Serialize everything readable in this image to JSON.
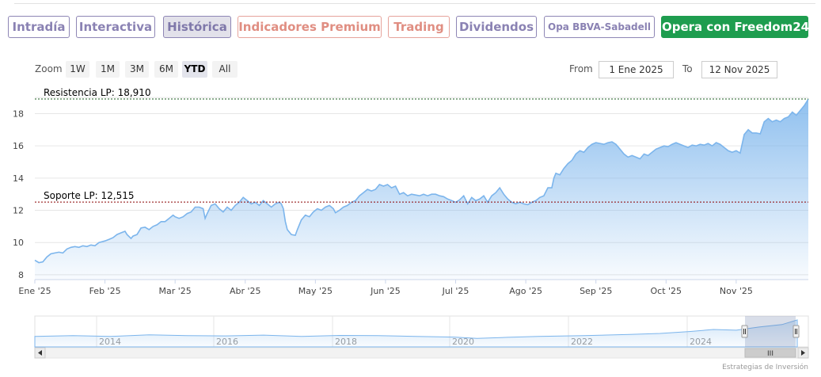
{
  "tabs": [
    {
      "label": "Intradía",
      "style": "normal"
    },
    {
      "label": "Interactiva",
      "style": "normal"
    },
    {
      "label": "Histórica",
      "style": "active"
    },
    {
      "label": "Indicadores Premium",
      "style": "premium"
    },
    {
      "label": "Trading",
      "style": "premium"
    },
    {
      "label": "Dividendos",
      "style": "normal"
    },
    {
      "label": "Opa BBVA-Sabadell",
      "style": "small"
    },
    {
      "label": "Opera con Freedom24",
      "style": "cta"
    }
  ],
  "colors": {
    "accent": "#8a82b3",
    "premium": "#e08e82",
    "cta": "#1e9d4f",
    "series": "#7cb5ec",
    "resistance": "#1b5e20",
    "support": "#8b0000"
  },
  "zoom": {
    "label": "Zoom",
    "buttons": [
      "1W",
      "1M",
      "3M",
      "6M",
      "YTD",
      "All"
    ],
    "selected": "YTD"
  },
  "range": {
    "from_label": "From",
    "from_value": "1 Ene 2025",
    "to_label": "To",
    "to_value": "12 Nov 2025"
  },
  "chart_data": {
    "type": "area",
    "title": "",
    "x_labels": [
      "Ene '25",
      "Feb '25",
      "Mar '25",
      "Abr '25",
      "May '25",
      "Jun '25",
      "Jul '25",
      "Ago '25",
      "Sep '25",
      "Oct '25",
      "Nov '25"
    ],
    "y_ticks": [
      8,
      10,
      12,
      14,
      16,
      18
    ],
    "ylim": [
      7.7,
      19.5
    ],
    "grid": true,
    "series": [
      {
        "values": [
          [
            0,
            8.9
          ],
          [
            2,
            8.75
          ],
          [
            4,
            8.8
          ],
          [
            6,
            9.1
          ],
          [
            8,
            9.3
          ],
          [
            10,
            9.35
          ],
          [
            12,
            9.4
          ],
          [
            14,
            9.35
          ],
          [
            16,
            9.6
          ],
          [
            18,
            9.7
          ],
          [
            20,
            9.75
          ],
          [
            22,
            9.7
          ],
          [
            24,
            9.8
          ],
          [
            26,
            9.75
          ],
          [
            28,
            9.85
          ],
          [
            30,
            9.8
          ],
          [
            32,
            10.0
          ],
          [
            35,
            10.1
          ],
          [
            37,
            10.2
          ],
          [
            39,
            10.3
          ],
          [
            41,
            10.5
          ],
          [
            43,
            10.6
          ],
          [
            45,
            10.7
          ],
          [
            46,
            10.5
          ],
          [
            48,
            10.25
          ],
          [
            49,
            10.4
          ],
          [
            51,
            10.5
          ],
          [
            53,
            10.9
          ],
          [
            55,
            10.95
          ],
          [
            57,
            10.8
          ],
          [
            59,
            11.0
          ],
          [
            61,
            11.1
          ],
          [
            63,
            11.3
          ],
          [
            65,
            11.3
          ],
          [
            67,
            11.5
          ],
          [
            69,
            11.7
          ],
          [
            70,
            11.6
          ],
          [
            72,
            11.5
          ],
          [
            74,
            11.6
          ],
          [
            76,
            11.8
          ],
          [
            78,
            11.9
          ],
          [
            80,
            12.2
          ],
          [
            82,
            12.2
          ],
          [
            84,
            12.1
          ],
          [
            85,
            11.5
          ],
          [
            86,
            11.8
          ],
          [
            88,
            12.3
          ],
          [
            90,
            12.4
          ],
          [
            92,
            12.1
          ],
          [
            94,
            11.9
          ],
          [
            96,
            12.2
          ],
          [
            98,
            12.0
          ],
          [
            100,
            12.3
          ],
          [
            102,
            12.5
          ],
          [
            104,
            12.8
          ],
          [
            106,
            12.6
          ],
          [
            108,
            12.4
          ],
          [
            110,
            12.5
          ],
          [
            112,
            12.3
          ],
          [
            114,
            12.6
          ],
          [
            116,
            12.4
          ],
          [
            118,
            12.2
          ],
          [
            120,
            12.4
          ],
          [
            122,
            12.5
          ],
          [
            123,
            12.4
          ],
          [
            124,
            12.1
          ],
          [
            125,
            11.3
          ],
          [
            126,
            10.8
          ],
          [
            128,
            10.5
          ],
          [
            130,
            10.45
          ],
          [
            131,
            10.8
          ],
          [
            133,
            11.4
          ],
          [
            135,
            11.7
          ],
          [
            137,
            11.6
          ],
          [
            139,
            11.9
          ],
          [
            141,
            12.1
          ],
          [
            143,
            12.0
          ],
          [
            145,
            12.2
          ],
          [
            147,
            12.3
          ],
          [
            149,
            12.1
          ],
          [
            150,
            11.85
          ],
          [
            152,
            12.0
          ],
          [
            154,
            12.2
          ],
          [
            156,
            12.3
          ],
          [
            158,
            12.5
          ],
          [
            160,
            12.6
          ],
          [
            162,
            12.9
          ],
          [
            164,
            13.1
          ],
          [
            166,
            13.3
          ],
          [
            168,
            13.2
          ],
          [
            170,
            13.3
          ],
          [
            172,
            13.6
          ],
          [
            174,
            13.5
          ],
          [
            176,
            13.6
          ],
          [
            178,
            13.4
          ],
          [
            180,
            13.5
          ],
          [
            182,
            13.0
          ],
          [
            184,
            13.1
          ],
          [
            186,
            12.9
          ],
          [
            188,
            13.0
          ],
          [
            190,
            12.95
          ],
          [
            192,
            12.9
          ],
          [
            194,
            13.0
          ],
          [
            196,
            12.9
          ],
          [
            198,
            13.0
          ],
          [
            200,
            13.0
          ],
          [
            202,
            12.9
          ],
          [
            204,
            12.85
          ],
          [
            206,
            12.7
          ],
          [
            208,
            12.6
          ],
          [
            210,
            12.5
          ],
          [
            212,
            12.65
          ],
          [
            214,
            12.9
          ],
          [
            216,
            12.4
          ],
          [
            218,
            12.8
          ],
          [
            220,
            12.6
          ],
          [
            222,
            12.7
          ],
          [
            224,
            12.9
          ],
          [
            226,
            12.5
          ],
          [
            228,
            12.9
          ],
          [
            230,
            13.1
          ],
          [
            232,
            13.4
          ],
          [
            234,
            13.0
          ],
          [
            236,
            12.7
          ],
          [
            238,
            12.5
          ],
          [
            240,
            12.4
          ],
          [
            242,
            12.5
          ],
          [
            244,
            12.4
          ],
          [
            246,
            12.35
          ],
          [
            248,
            12.5
          ],
          [
            250,
            12.6
          ],
          [
            252,
            12.8
          ],
          [
            254,
            12.9
          ],
          [
            256,
            13.4
          ],
          [
            258,
            13.4
          ],
          [
            259,
            14.0
          ],
          [
            260,
            14.3
          ],
          [
            262,
            14.2
          ],
          [
            264,
            14.6
          ],
          [
            266,
            14.9
          ],
          [
            268,
            15.1
          ],
          [
            270,
            15.5
          ],
          [
            272,
            15.7
          ],
          [
            274,
            15.6
          ],
          [
            276,
            15.9
          ],
          [
            278,
            16.1
          ],
          [
            280,
            16.2
          ],
          [
            282,
            16.15
          ],
          [
            284,
            16.1
          ],
          [
            286,
            16.2
          ],
          [
            288,
            16.25
          ],
          [
            290,
            16.1
          ],
          [
            292,
            15.8
          ],
          [
            294,
            15.5
          ],
          [
            296,
            15.3
          ],
          [
            298,
            15.4
          ],
          [
            300,
            15.3
          ],
          [
            302,
            15.2
          ],
          [
            304,
            15.5
          ],
          [
            306,
            15.4
          ],
          [
            308,
            15.6
          ],
          [
            310,
            15.8
          ],
          [
            312,
            15.9
          ],
          [
            314,
            16.0
          ],
          [
            316,
            15.95
          ],
          [
            318,
            16.1
          ],
          [
            320,
            16.2
          ],
          [
            322,
            16.1
          ],
          [
            324,
            16.0
          ],
          [
            326,
            15.9
          ],
          [
            328,
            16.05
          ],
          [
            330,
            16.0
          ],
          [
            332,
            16.1
          ],
          [
            334,
            16.05
          ],
          [
            336,
            16.15
          ],
          [
            338,
            16.0
          ],
          [
            340,
            16.2
          ],
          [
            342,
            16.1
          ],
          [
            344,
            15.9
          ],
          [
            346,
            15.7
          ],
          [
            348,
            15.6
          ],
          [
            350,
            15.7
          ],
          [
            352,
            15.55
          ],
          [
            354,
            16.7
          ],
          [
            356,
            17.0
          ],
          [
            358,
            16.8
          ],
          [
            360,
            16.8
          ],
          [
            362,
            16.75
          ],
          [
            364,
            17.5
          ],
          [
            366,
            17.7
          ],
          [
            368,
            17.5
          ],
          [
            370,
            17.6
          ],
          [
            372,
            17.5
          ],
          [
            374,
            17.7
          ],
          [
            376,
            17.8
          ],
          [
            378,
            18.1
          ],
          [
            380,
            17.9
          ],
          [
            382,
            18.2
          ],
          [
            384,
            18.5
          ],
          [
            386,
            18.9
          ]
        ]
      }
    ],
    "plotlines": [
      {
        "label": "Resistencia LP: 18,910",
        "value": 18.91
      },
      {
        "label": "Soporte LP: 12,515",
        "value": 12.515
      }
    ]
  },
  "navigator": {
    "years": [
      "2014",
      "2016",
      "2018",
      "2020",
      "2022",
      "2024"
    ],
    "scroll_grip": "III"
  },
  "credits": "Estrategias de Inversión"
}
